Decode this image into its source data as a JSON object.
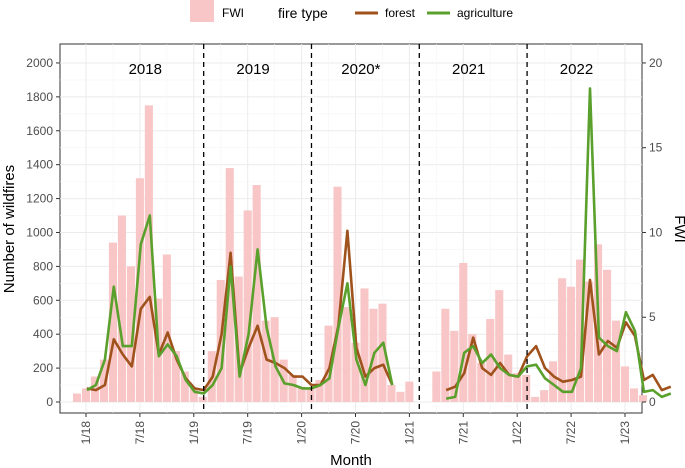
{
  "chart_data": {
    "type": "bar+line",
    "xlabel": "Month",
    "ylabel": "Number of wildfires",
    "y2label": "FWI",
    "ylim": [
      0,
      2100
    ],
    "y2lim": [
      0,
      21
    ],
    "y_ticks": [
      "0",
      "200",
      "400",
      "600",
      "800",
      "1000",
      "1200",
      "1400",
      "1600",
      "1800",
      "2000"
    ],
    "y2_ticks": [
      "0",
      "5",
      "10",
      "15",
      "20"
    ],
    "x_ticks": [
      "1/18",
      "7/18",
      "1/19",
      "7/19",
      "1/20",
      "7/20",
      "1/21",
      "7/21",
      "1/22",
      "7/22",
      "1/23"
    ],
    "year_labels": [
      "2018",
      "2019",
      "2020*",
      "2021",
      "2022"
    ],
    "legend": {
      "fwi_label": "FWI",
      "title": "fire type",
      "forest_label": "forest",
      "agriculture_label": "agriculture",
      "placement": "top"
    },
    "colors": {
      "fwi": "#f8c6c6",
      "forest": "#a0521d",
      "agriculture": "#5aa02c",
      "grid_major": "#ebebeb",
      "grid_minor": "#f5f5f5"
    },
    "fwi": [
      0.5,
      0.8,
      1.5,
      2.5,
      9.4,
      11,
      8,
      13.2,
      17.5,
      6.1,
      8.7,
      3,
      1.8,
      0.8,
      0.3,
      3,
      7.2,
      13.8,
      7.4,
      11.3,
      12.8,
      4.8,
      5,
      2.5,
      1.6,
      0.9,
      0.8,
      1.3,
      4.5,
      12.7,
      5.6,
      3.5,
      6.7,
      5.5,
      5.8,
      1,
      0.6,
      1.2,
      null,
      null,
      1.8,
      5.5,
      4.2,
      8.2,
      4,
      2.3,
      4.9,
      6.6,
      2.8,
      1.7,
      1.6,
      0.3,
      0.7,
      2.4,
      7.3,
      6.8,
      8.4,
      7.1,
      9.3,
      7.8,
      4.8,
      2.1,
      0.8,
      0.4
    ],
    "series": [
      {
        "name": "forest",
        "values": [
          80,
          70,
          100,
          370,
          280,
          210,
          550,
          620,
          280,
          410,
          250,
          140,
          80,
          70,
          150,
          400,
          880,
          170,
          320,
          450,
          250,
          230,
          200,
          150,
          150,
          100,
          100,
          200,
          450,
          1010,
          320,
          150,
          200,
          220,
          100,
          null,
          null,
          null,
          null,
          null,
          70,
          90,
          170,
          380,
          200,
          160,
          230,
          160,
          150,
          270,
          330,
          200,
          150,
          120,
          130,
          150,
          720,
          280,
          360,
          320,
          470,
          390,
          130,
          160,
          70,
          90
        ],
        "x_start": 0
      },
      {
        "name": "agriculture",
        "values": [
          70,
          100,
          250,
          680,
          330,
          330,
          930,
          1100,
          270,
          340,
          270,
          130,
          60,
          50,
          100,
          200,
          800,
          150,
          400,
          900,
          440,
          210,
          110,
          100,
          80,
          80,
          100,
          140,
          440,
          700,
          250,
          100,
          290,
          350,
          100,
          null,
          null,
          null,
          null,
          null,
          20,
          30,
          290,
          330,
          230,
          280,
          200,
          160,
          150,
          210,
          220,
          140,
          100,
          60,
          60,
          200,
          1850,
          380,
          330,
          300,
          530,
          420,
          60,
          70,
          30,
          50
        ],
        "x_start": 0
      }
    ]
  }
}
